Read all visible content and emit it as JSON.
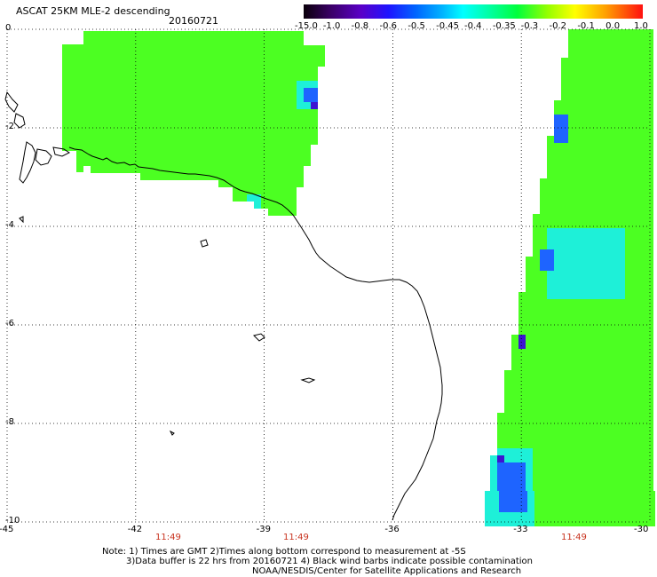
{
  "title": "ASCAT 25KM MLE-2 descending",
  "date": "20160721",
  "colorbar": {
    "ticks": [
      "-15.0",
      "-1.0",
      "-0.8",
      "-0.6",
      "-0.5",
      "-0.45",
      "-0.4",
      "-0.35",
      "-0.3",
      "-0.2",
      "-0.1",
      "0.0",
      "1.0"
    ],
    "colors": [
      "#140014",
      "#3a0070",
      "#5a00c8",
      "#1414ff",
      "#0064ff",
      "#00b4ff",
      "#00ffff",
      "#00ffa0",
      "#00ff3c",
      "#96ff00",
      "#ffff00",
      "#ffa000",
      "#ff3000",
      "#ff1010"
    ]
  },
  "axes": {
    "lat_labels": [
      "0",
      "-2",
      "-4",
      "-6",
      "-8",
      "-10"
    ],
    "lon_labels": [
      "-45",
      "-42",
      "-39",
      "-36",
      "-33",
      "-30"
    ],
    "grid": true
  },
  "pass_times": [
    "11:49",
    "11:49",
    "11:49"
  ],
  "notes": [
    "Note: 1) Times are GMT 2)Times along bottom correspond to measurement at -5S",
    "3)Data buffer is 22 hrs from 20160721 4) Black wind barbs indicate possible contamination",
    "NOAA/NESDIS/Center for Satellite Applications and Research"
  ],
  "swaths": {
    "base_color": "#4cff22",
    "alt_color": "#3cff3a",
    "cyan_color": "#1ef0d8",
    "blue_color": "#1e64ff",
    "purple_color": "#3c14d2"
  }
}
